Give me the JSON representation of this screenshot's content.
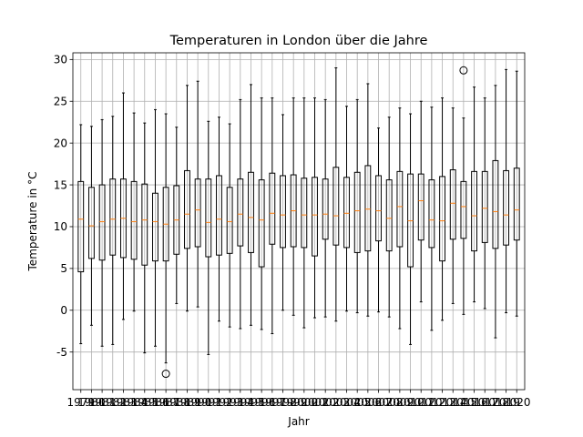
{
  "chart_data": {
    "type": "boxplot",
    "title": "Temperaturen in London über die Jahre",
    "xlabel": "Jahr",
    "ylabel": "Temperature in °C",
    "ylim": [
      -9.5,
      30.8
    ],
    "yticks": [
      -5,
      0,
      5,
      10,
      15,
      20,
      25,
      30
    ],
    "grid": true,
    "categories": [
      "1979",
      "1980",
      "1981",
      "1982",
      "1983",
      "1984",
      "1985",
      "1986",
      "1987",
      "1988",
      "1989",
      "1990",
      "1991",
      "1992",
      "1993",
      "1994",
      "1995",
      "1996",
      "1997",
      "1998",
      "1999",
      "2000",
      "2001",
      "2002",
      "2003",
      "2004",
      "2005",
      "2006",
      "2007",
      "2008",
      "2009",
      "2010",
      "2011",
      "2012",
      "2013",
      "2014",
      "2015",
      "2016",
      "2017",
      "2018",
      "2019",
      "2020"
    ],
    "boxes": [
      {
        "whislo": -4.0,
        "q1": 4.6,
        "med": 10.9,
        "q3": 15.4,
        "whishi": 22.2,
        "fliers": []
      },
      {
        "whislo": -1.8,
        "q1": 6.2,
        "med": 10.1,
        "q3": 14.7,
        "whishi": 22.0,
        "fliers": []
      },
      {
        "whislo": -4.3,
        "q1": 6.0,
        "med": 10.6,
        "q3": 15.0,
        "whishi": 22.8,
        "fliers": []
      },
      {
        "whislo": -4.1,
        "q1": 6.6,
        "med": 10.9,
        "q3": 15.7,
        "whishi": 23.2,
        "fliers": []
      },
      {
        "whislo": -1.1,
        "q1": 6.3,
        "med": 11.0,
        "q3": 15.7,
        "whishi": 26.0,
        "fliers": []
      },
      {
        "whislo": -0.1,
        "q1": 6.1,
        "med": 10.6,
        "q3": 15.4,
        "whishi": 23.6,
        "fliers": []
      },
      {
        "whislo": -5.1,
        "q1": 5.4,
        "med": 10.8,
        "q3": 15.1,
        "whishi": 22.4,
        "fliers": []
      },
      {
        "whislo": -4.3,
        "q1": 5.9,
        "med": 10.6,
        "q3": 14.0,
        "whishi": 24.0,
        "fliers": []
      },
      {
        "whislo": -6.3,
        "q1": 5.9,
        "med": 10.3,
        "q3": 14.7,
        "whishi": 23.5,
        "fliers": [
          -7.6
        ]
      },
      {
        "whislo": 0.8,
        "q1": 6.7,
        "med": 10.8,
        "q3": 14.9,
        "whishi": 21.9,
        "fliers": []
      },
      {
        "whislo": -0.1,
        "q1": 7.4,
        "med": 11.5,
        "q3": 16.7,
        "whishi": 26.9,
        "fliers": []
      },
      {
        "whislo": 0.4,
        "q1": 7.6,
        "med": 12.0,
        "q3": 15.7,
        "whishi": 27.4,
        "fliers": []
      },
      {
        "whislo": -5.3,
        "q1": 6.4,
        "med": 10.5,
        "q3": 15.7,
        "whishi": 22.6,
        "fliers": []
      },
      {
        "whislo": -1.3,
        "q1": 6.6,
        "med": 10.9,
        "q3": 16.1,
        "whishi": 23.1,
        "fliers": []
      },
      {
        "whislo": -2.0,
        "q1": 6.8,
        "med": 10.6,
        "q3": 14.7,
        "whishi": 22.3,
        "fliers": []
      },
      {
        "whislo": -2.2,
        "q1": 7.7,
        "med": 11.5,
        "q3": 15.7,
        "whishi": 25.2,
        "fliers": []
      },
      {
        "whislo": -1.8,
        "q1": 6.9,
        "med": 11.1,
        "q3": 16.5,
        "whishi": 27.0,
        "fliers": []
      },
      {
        "whislo": -2.3,
        "q1": 5.2,
        "med": 10.8,
        "q3": 15.6,
        "whishi": 25.4,
        "fliers": []
      },
      {
        "whislo": -2.8,
        "q1": 7.9,
        "med": 11.6,
        "q3": 16.4,
        "whishi": 25.4,
        "fliers": []
      },
      {
        "whislo": 0.0,
        "q1": 7.5,
        "med": 11.4,
        "q3": 16.1,
        "whishi": 23.4,
        "fliers": []
      },
      {
        "whislo": -0.6,
        "q1": 7.6,
        "med": 11.9,
        "q3": 16.2,
        "whishi": 25.4,
        "fliers": []
      },
      {
        "whislo": -2.1,
        "q1": 7.5,
        "med": 11.4,
        "q3": 15.8,
        "whishi": 25.4,
        "fliers": []
      },
      {
        "whislo": -0.9,
        "q1": 6.5,
        "med": 11.4,
        "q3": 15.9,
        "whishi": 25.4,
        "fliers": []
      },
      {
        "whislo": -0.8,
        "q1": 8.5,
        "med": 11.5,
        "q3": 15.7,
        "whishi": 25.2,
        "fliers": []
      },
      {
        "whislo": -1.3,
        "q1": 7.8,
        "med": 11.3,
        "q3": 17.1,
        "whishi": 29.0,
        "fliers": []
      },
      {
        "whislo": -0.1,
        "q1": 7.5,
        "med": 11.6,
        "q3": 15.9,
        "whishi": 24.4,
        "fliers": []
      },
      {
        "whislo": -0.3,
        "q1": 6.9,
        "med": 11.9,
        "q3": 16.5,
        "whishi": 25.2,
        "fliers": []
      },
      {
        "whislo": -0.7,
        "q1": 7.1,
        "med": 12.1,
        "q3": 17.3,
        "whishi": 27.1,
        "fliers": []
      },
      {
        "whislo": -0.2,
        "q1": 8.3,
        "med": 11.9,
        "q3": 16.1,
        "whishi": 21.8,
        "fliers": []
      },
      {
        "whislo": -0.8,
        "q1": 7.1,
        "med": 11.0,
        "q3": 15.6,
        "whishi": 23.1,
        "fliers": []
      },
      {
        "whislo": -2.2,
        "q1": 7.6,
        "med": 12.4,
        "q3": 16.6,
        "whishi": 24.2,
        "fliers": []
      },
      {
        "whislo": -4.1,
        "q1": 5.2,
        "med": 10.7,
        "q3": 16.3,
        "whishi": 23.5,
        "fliers": []
      },
      {
        "whislo": 1.0,
        "q1": 8.4,
        "med": 13.1,
        "q3": 16.3,
        "whishi": 25.0,
        "fliers": []
      },
      {
        "whislo": -2.4,
        "q1": 7.5,
        "med": 10.8,
        "q3": 15.6,
        "whishi": 24.3,
        "fliers": []
      },
      {
        "whislo": -1.2,
        "q1": 5.9,
        "med": 10.7,
        "q3": 16.0,
        "whishi": 25.4,
        "fliers": []
      },
      {
        "whislo": 0.8,
        "q1": 8.5,
        "med": 12.8,
        "q3": 16.8,
        "whishi": 24.2,
        "fliers": []
      },
      {
        "whislo": -0.5,
        "q1": 8.6,
        "med": 12.4,
        "q3": 15.4,
        "whishi": 23.0,
        "fliers": [
          28.7
        ]
      },
      {
        "whislo": 1.0,
        "q1": 7.1,
        "med": 11.3,
        "q3": 16.6,
        "whishi": 26.7,
        "fliers": []
      },
      {
        "whislo": 0.2,
        "q1": 8.1,
        "med": 12.2,
        "q3": 16.6,
        "whishi": 25.4,
        "fliers": []
      },
      {
        "whislo": -3.3,
        "q1": 7.4,
        "med": 11.8,
        "q3": 17.9,
        "whishi": 26.9,
        "fliers": []
      },
      {
        "whislo": -0.3,
        "q1": 7.8,
        "med": 11.4,
        "q3": 16.7,
        "whishi": 28.8,
        "fliers": []
      },
      {
        "whislo": -0.7,
        "q1": 8.4,
        "med": 12.0,
        "q3": 17.0,
        "whishi": 28.6,
        "fliers": []
      }
    ],
    "colors": {
      "box": "#000000",
      "median": "#ff7f0e",
      "grid": "#b0b0b0"
    }
  }
}
